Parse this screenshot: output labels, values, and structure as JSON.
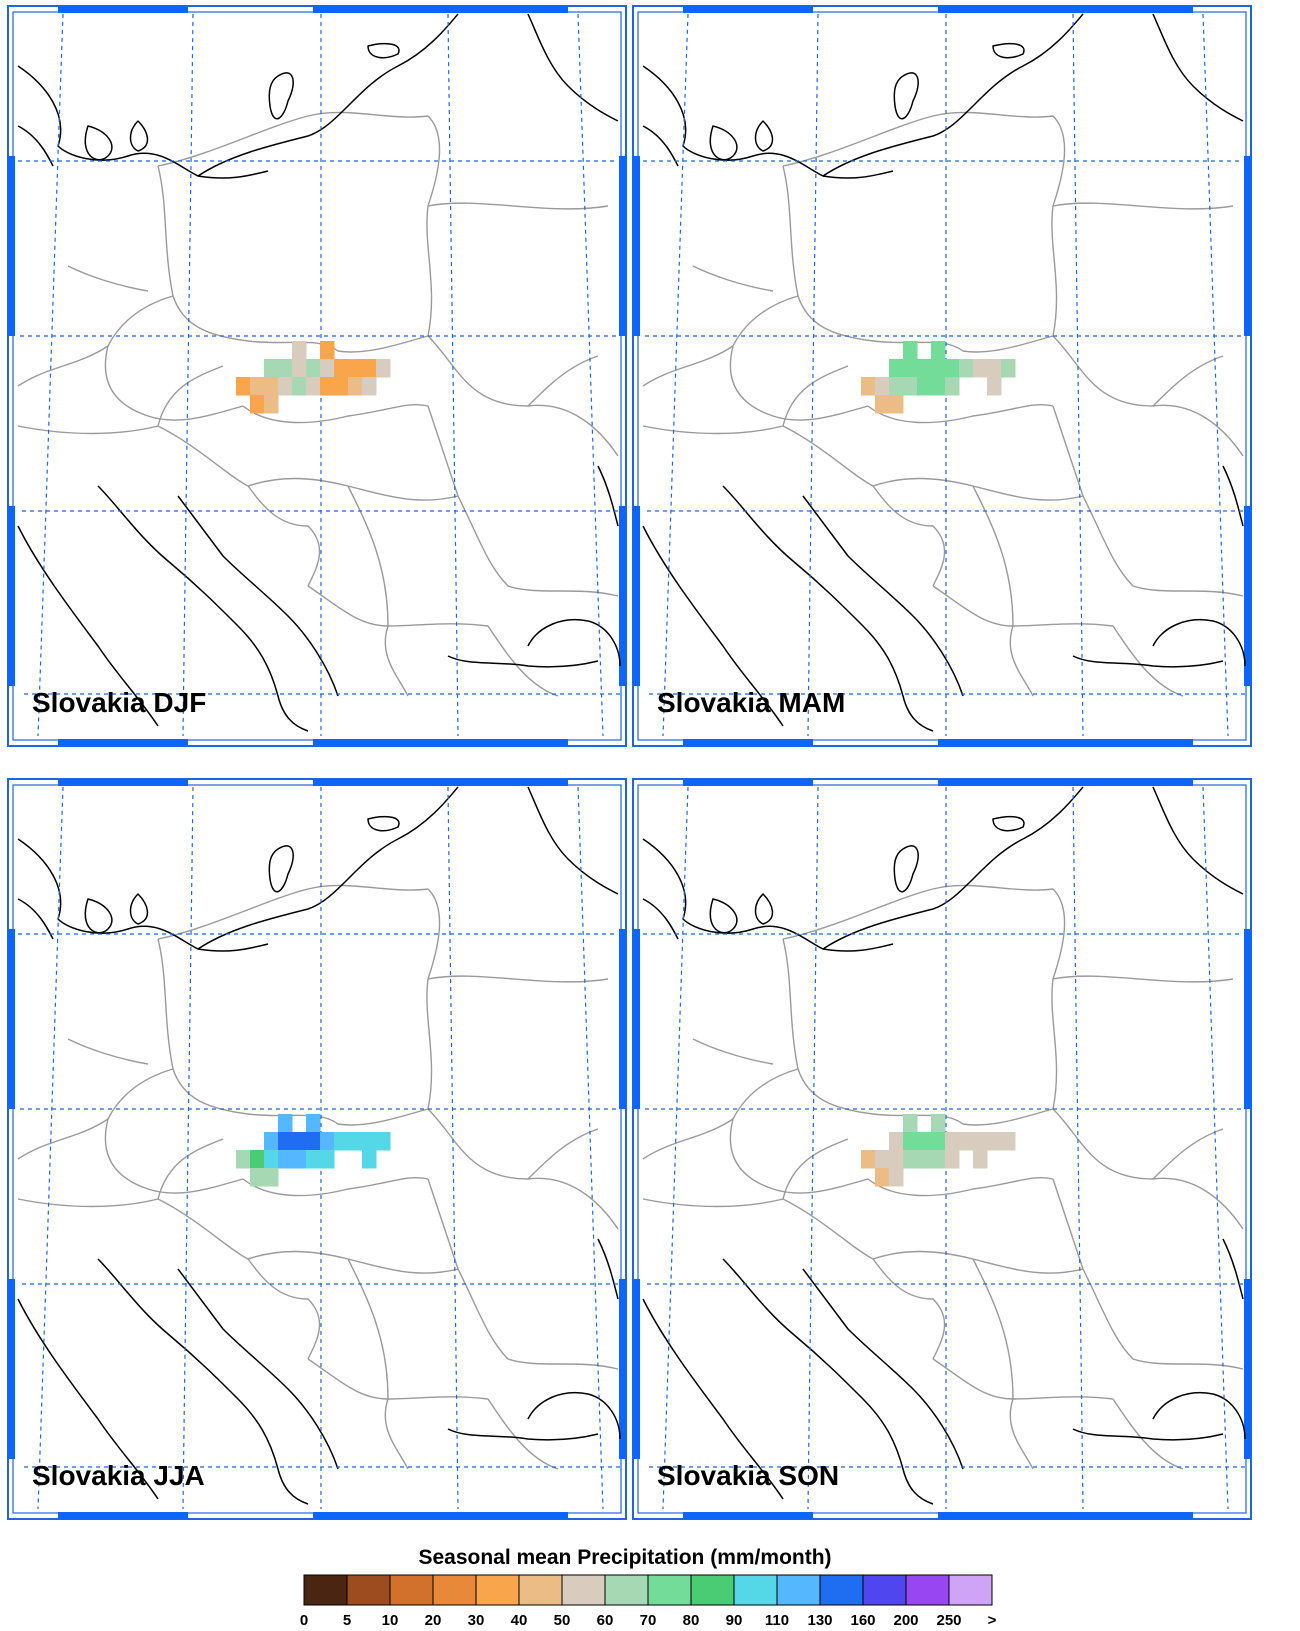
{
  "colorbar": {
    "title": "Seasonal mean Precipitation (mm/month)",
    "ticks": [
      "0",
      "5",
      "10",
      "20",
      "30",
      "40",
      "50",
      "60",
      "70",
      "80",
      "90",
      "110",
      "130",
      "160",
      "200",
      "250",
      ">"
    ],
    "colors": [
      "#4a2612",
      "#9c4d20",
      "#d1712b",
      "#e8893a",
      "#f9a54b",
      "#ecbc86",
      "#d8ccbe",
      "#a6d8b4",
      "#73dc98",
      "#49cc74",
      "#54d8e8",
      "#55b8ff",
      "#1f6ef2",
      "#5046f0",
      "#9846f2",
      "#cfa3f6"
    ]
  },
  "panels": [
    {
      "label": "Slovakia DJF",
      "cells": [
        {
          "col": 4,
          "row": 0,
          "bin": 6
        },
        {
          "col": 6,
          "row": 0,
          "bin": 4
        },
        {
          "col": 2,
          "row": 1,
          "bin": 7
        },
        {
          "col": 3,
          "row": 1,
          "bin": 7
        },
        {
          "col": 4,
          "row": 1,
          "bin": 6
        },
        {
          "col": 5,
          "row": 1,
          "bin": 7
        },
        {
          "col": 6,
          "row": 1,
          "bin": 6
        },
        {
          "col": 7,
          "row": 1,
          "bin": 4
        },
        {
          "col": 8,
          "row": 1,
          "bin": 4
        },
        {
          "col": 9,
          "row": 1,
          "bin": 4
        },
        {
          "col": 10,
          "row": 1,
          "bin": 6
        },
        {
          "col": 0,
          "row": 2,
          "bin": 4
        },
        {
          "col": 1,
          "row": 2,
          "bin": 5
        },
        {
          "col": 2,
          "row": 2,
          "bin": 5
        },
        {
          "col": 3,
          "row": 2,
          "bin": 6
        },
        {
          "col": 4,
          "row": 2,
          "bin": 7
        },
        {
          "col": 5,
          "row": 2,
          "bin": 6
        },
        {
          "col": 6,
          "row": 2,
          "bin": 4
        },
        {
          "col": 7,
          "row": 2,
          "bin": 4
        },
        {
          "col": 8,
          "row": 2,
          "bin": 5
        },
        {
          "col": 9,
          "row": 2,
          "bin": 6
        },
        {
          "col": 1,
          "row": 3,
          "bin": 4
        },
        {
          "col": 2,
          "row": 3,
          "bin": 5
        }
      ]
    },
    {
      "label": "Slovakia MAM",
      "cells": [
        {
          "col": 3,
          "row": 0,
          "bin": 8
        },
        {
          "col": 5,
          "row": 0,
          "bin": 8
        },
        {
          "col": 2,
          "row": 1,
          "bin": 8
        },
        {
          "col": 3,
          "row": 1,
          "bin": 8
        },
        {
          "col": 4,
          "row": 1,
          "bin": 8
        },
        {
          "col": 5,
          "row": 1,
          "bin": 8
        },
        {
          "col": 6,
          "row": 1,
          "bin": 8
        },
        {
          "col": 7,
          "row": 1,
          "bin": 7
        },
        {
          "col": 8,
          "row": 1,
          "bin": 6
        },
        {
          "col": 9,
          "row": 1,
          "bin": 6
        },
        {
          "col": 10,
          "row": 1,
          "bin": 7
        },
        {
          "col": 0,
          "row": 2,
          "bin": 5
        },
        {
          "col": 1,
          "row": 2,
          "bin": 6
        },
        {
          "col": 2,
          "row": 2,
          "bin": 7
        },
        {
          "col": 3,
          "row": 2,
          "bin": 7
        },
        {
          "col": 4,
          "row": 2,
          "bin": 8
        },
        {
          "col": 5,
          "row": 2,
          "bin": 8
        },
        {
          "col": 6,
          "row": 2,
          "bin": 7
        },
        {
          "col": 9,
          "row": 2,
          "bin": 6
        },
        {
          "col": 1,
          "row": 3,
          "bin": 5
        },
        {
          "col": 2,
          "row": 3,
          "bin": 5
        }
      ]
    },
    {
      "label": "Slovakia JJA",
      "cells": [
        {
          "col": 3,
          "row": 0,
          "bin": 11
        },
        {
          "col": 5,
          "row": 0,
          "bin": 11
        },
        {
          "col": 2,
          "row": 1,
          "bin": 11
        },
        {
          "col": 3,
          "row": 1,
          "bin": 12
        },
        {
          "col": 4,
          "row": 1,
          "bin": 12
        },
        {
          "col": 5,
          "row": 1,
          "bin": 12
        },
        {
          "col": 6,
          "row": 1,
          "bin": 11
        },
        {
          "col": 7,
          "row": 1,
          "bin": 10
        },
        {
          "col": 8,
          "row": 1,
          "bin": 10
        },
        {
          "col": 9,
          "row": 1,
          "bin": 10
        },
        {
          "col": 10,
          "row": 1,
          "bin": 10
        },
        {
          "col": 0,
          "row": 2,
          "bin": 7
        },
        {
          "col": 1,
          "row": 2,
          "bin": 9
        },
        {
          "col": 2,
          "row": 2,
          "bin": 10
        },
        {
          "col": 3,
          "row": 2,
          "bin": 11
        },
        {
          "col": 4,
          "row": 2,
          "bin": 11
        },
        {
          "col": 5,
          "row": 2,
          "bin": 10
        },
        {
          "col": 6,
          "row": 2,
          "bin": 10
        },
        {
          "col": 9,
          "row": 2,
          "bin": 10
        },
        {
          "col": 1,
          "row": 3,
          "bin": 7
        },
        {
          "col": 2,
          "row": 3,
          "bin": 7
        }
      ]
    },
    {
      "label": "Slovakia SON",
      "cells": [
        {
          "col": 3,
          "row": 0,
          "bin": 7
        },
        {
          "col": 5,
          "row": 0,
          "bin": 7
        },
        {
          "col": 2,
          "row": 1,
          "bin": 6
        },
        {
          "col": 3,
          "row": 1,
          "bin": 8
        },
        {
          "col": 4,
          "row": 1,
          "bin": 8
        },
        {
          "col": 5,
          "row": 1,
          "bin": 8
        },
        {
          "col": 6,
          "row": 1,
          "bin": 6
        },
        {
          "col": 7,
          "row": 1,
          "bin": 6
        },
        {
          "col": 8,
          "row": 1,
          "bin": 6
        },
        {
          "col": 9,
          "row": 1,
          "bin": 6
        },
        {
          "col": 10,
          "row": 1,
          "bin": 6
        },
        {
          "col": 0,
          "row": 2,
          "bin": 5
        },
        {
          "col": 1,
          "row": 2,
          "bin": 6
        },
        {
          "col": 2,
          "row": 2,
          "bin": 6
        },
        {
          "col": 3,
          "row": 2,
          "bin": 7
        },
        {
          "col": 4,
          "row": 2,
          "bin": 7
        },
        {
          "col": 5,
          "row": 2,
          "bin": 7
        },
        {
          "col": 6,
          "row": 2,
          "bin": 6
        },
        {
          "col": 8,
          "row": 2,
          "bin": 6
        },
        {
          "col": 1,
          "row": 3,
          "bin": 5
        },
        {
          "col": 2,
          "row": 3,
          "bin": 6
        }
      ]
    }
  ]
}
